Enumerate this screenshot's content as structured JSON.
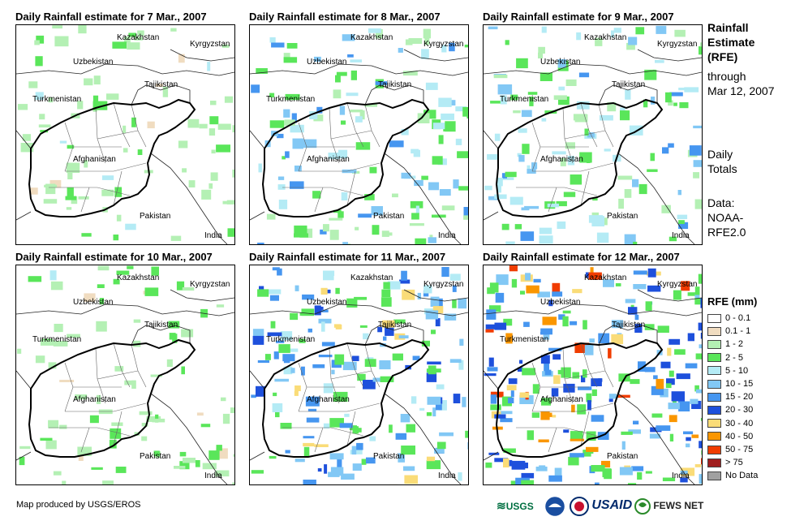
{
  "panels": [
    {
      "title": "Daily Rainfall estimate for 7 Mar., 2007",
      "intensity": 1
    },
    {
      "title": "Daily Rainfall estimate for 8 Mar., 2007",
      "intensity": 2
    },
    {
      "title": "Daily Rainfall estimate for 9 Mar., 2007",
      "intensity": 2
    },
    {
      "title": "Daily Rainfall estimate for 10 Mar., 2007",
      "intensity": 1
    },
    {
      "title": "Daily Rainfall estimate for 11 Mar., 2007",
      "intensity": 3
    },
    {
      "title": "Daily Rainfall estimate for 12 Mar., 2007",
      "intensity": 4
    }
  ],
  "countries": {
    "kazakhstan": "Kazakhstan",
    "kyrgyzstan": "Kyrgyzstan",
    "uzbekistan": "Uzbekistan",
    "tajikistan": "Tajikistan",
    "turkmenistan": "Turkmenistan",
    "afghanistan": "Afghanistan",
    "pakistan": "Pakistan",
    "india": "India"
  },
  "side": {
    "title_line1": "Rainfall",
    "title_line2": "Estimate",
    "title_line3": "(RFE)",
    "through": "through",
    "date": "Mar 12, 2007",
    "daily": "Daily",
    "totals": "Totals",
    "data_label": "Data:",
    "noaa": "NOAA-",
    "rfe": "RFE2.0"
  },
  "legend": {
    "title": "RFE (mm)",
    "items": [
      {
        "label": "0 - 0.1",
        "color": "#ffffff"
      },
      {
        "label": "0.1 - 1",
        "color": "#f0dcc0"
      },
      {
        "label": "1 - 2",
        "color": "#b4f0b4"
      },
      {
        "label": "2 - 5",
        "color": "#5ae65a"
      },
      {
        "label": "5 - 10",
        "color": "#b4ebf5"
      },
      {
        "label": "10 - 15",
        "color": "#82c8f5"
      },
      {
        "label": "15 - 20",
        "color": "#4696f0"
      },
      {
        "label": "20 - 30",
        "color": "#1e50dc"
      },
      {
        "label": "30 - 40",
        "color": "#fadc78"
      },
      {
        "label": "40 - 50",
        "color": "#fa9600"
      },
      {
        "label": "50 - 75",
        "color": "#f03c00"
      },
      {
        "label": "> 75",
        "color": "#a01e1e"
      },
      {
        "label": "No Data",
        "color": "#a0a0a0"
      }
    ]
  },
  "credit": "Map produced by USGS/EROS",
  "logos": {
    "usgs": "USGS",
    "usaid": "USAID",
    "fews": "FEWS NET"
  }
}
